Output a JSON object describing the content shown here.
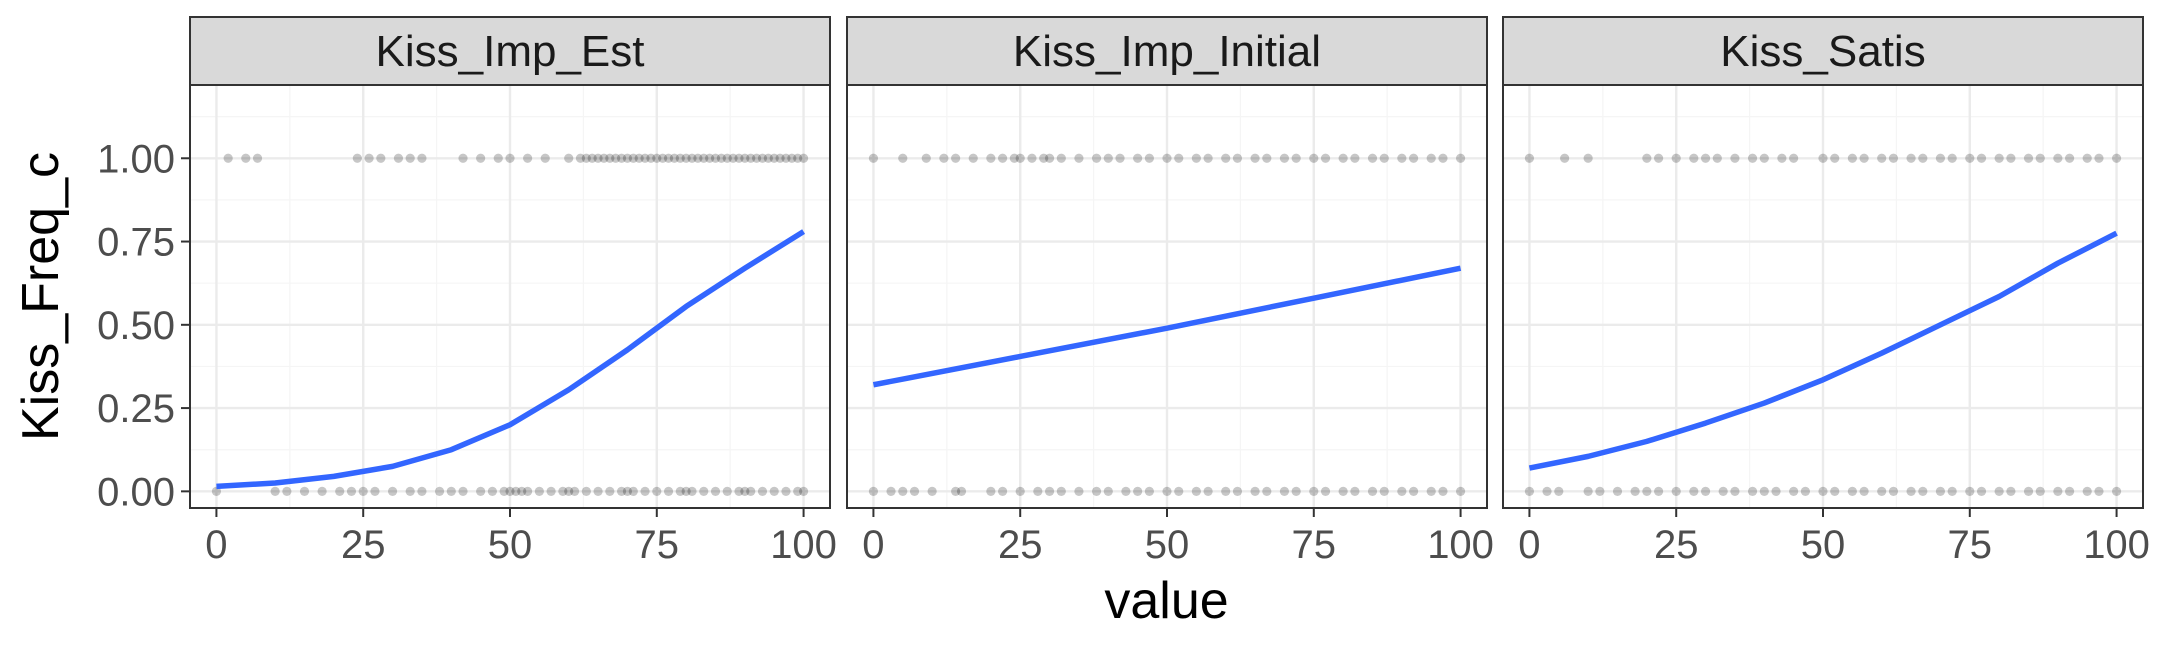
{
  "chart_data": {
    "type": "scatter",
    "xlabel": "value",
    "ylabel": "Kiss_Freq_c",
    "xlim": [
      -4.5,
      104.5
    ],
    "ylim": [
      -0.05,
      1.05
    ],
    "x_ticks": [
      0,
      25,
      50,
      75,
      100
    ],
    "x_tick_labels": [
      "0",
      "25",
      "50",
      "75",
      "100"
    ],
    "y_ticks": [
      0,
      0.25,
      0.5,
      0.75,
      1
    ],
    "y_tick_labels": [
      "0.00",
      "0.25",
      "0.50",
      "0.75",
      "1.00"
    ],
    "y_display_max": 1.22,
    "grid": true,
    "colors": {
      "points": "#000000",
      "fit_line": "#3366FF",
      "panel_background": "#FFFFFF",
      "strip_background": "#D9D9D9",
      "grid_major": "#EBEBEB",
      "grid_minor": "#F5F5F5",
      "border": "#333333"
    },
    "panels": [
      {
        "title": "Kiss_Imp_Est",
        "fit_line": {
          "x": [
            0,
            10,
            20,
            30,
            40,
            50,
            60,
            70,
            75,
            80,
            90,
            100
          ],
          "y": [
            0.015,
            0.025,
            0.045,
            0.075,
            0.125,
            0.2,
            0.305,
            0.425,
            0.49,
            0.555,
            0.67,
            0.78
          ]
        },
        "points_y1": [
          2,
          5,
          7,
          24,
          26,
          28,
          31,
          33,
          35,
          42,
          45,
          48,
          50,
          53,
          56,
          60,
          62,
          63,
          64,
          65,
          66,
          67,
          68,
          69,
          70,
          71,
          72,
          73,
          74,
          75,
          76,
          77,
          78,
          79,
          80,
          81,
          82,
          83,
          84,
          85,
          86,
          87,
          88,
          89,
          90,
          91,
          92,
          93,
          94,
          95,
          96,
          97,
          98,
          99,
          100
        ],
        "points_y0": [
          0,
          10,
          12,
          15,
          18,
          21,
          23,
          25,
          27,
          30,
          33,
          35,
          38,
          40,
          42,
          45,
          47,
          49,
          50,
          51,
          52,
          53,
          55,
          57,
          59,
          60,
          61,
          63,
          65,
          67,
          69,
          70,
          71,
          73,
          75,
          77,
          79,
          80,
          81,
          83,
          85,
          87,
          89,
          90,
          91,
          93,
          95,
          97,
          99,
          100
        ]
      },
      {
        "title": "Kiss_Imp_Initial",
        "fit_line": {
          "x": [
            0,
            25,
            50,
            75,
            100
          ],
          "y": [
            0.32,
            0.405,
            0.49,
            0.58,
            0.67
          ]
        },
        "points_y1": [
          0,
          5,
          9,
          12,
          14,
          17,
          20,
          22,
          24,
          25,
          27,
          29,
          30,
          32,
          35,
          38,
          40,
          42,
          45,
          47,
          50,
          52,
          55,
          57,
          60,
          62,
          65,
          67,
          70,
          72,
          75,
          77,
          80,
          82,
          85,
          87,
          90,
          92,
          95,
          97,
          100
        ],
        "points_y0": [
          0,
          3,
          5,
          7,
          10,
          14,
          15,
          20,
          22,
          25,
          28,
          30,
          32,
          35,
          38,
          40,
          43,
          45,
          47,
          50,
          52,
          55,
          57,
          60,
          62,
          65,
          67,
          70,
          72,
          75,
          77,
          80,
          82,
          85,
          87,
          90,
          92,
          95,
          97,
          100
        ]
      },
      {
        "title": "Kiss_Satis",
        "fit_line": {
          "x": [
            0,
            10,
            20,
            30,
            40,
            50,
            60,
            70,
            80,
            90,
            100
          ],
          "y": [
            0.07,
            0.105,
            0.15,
            0.205,
            0.265,
            0.335,
            0.415,
            0.5,
            0.585,
            0.685,
            0.775
          ]
        },
        "points_y1": [
          0,
          6,
          10,
          20,
          22,
          25,
          28,
          30,
          32,
          35,
          38,
          40,
          43,
          45,
          50,
          52,
          55,
          57,
          60,
          62,
          65,
          67,
          70,
          72,
          75,
          77,
          80,
          82,
          85,
          87,
          90,
          92,
          95,
          97,
          100
        ],
        "points_y0": [
          0,
          3,
          5,
          10,
          12,
          15,
          18,
          20,
          22,
          25,
          28,
          30,
          33,
          35,
          38,
          40,
          42,
          45,
          47,
          50,
          52,
          55,
          57,
          60,
          62,
          65,
          67,
          70,
          72,
          75,
          77,
          80,
          82,
          85,
          87,
          90,
          92,
          95,
          97,
          100
        ]
      }
    ]
  }
}
